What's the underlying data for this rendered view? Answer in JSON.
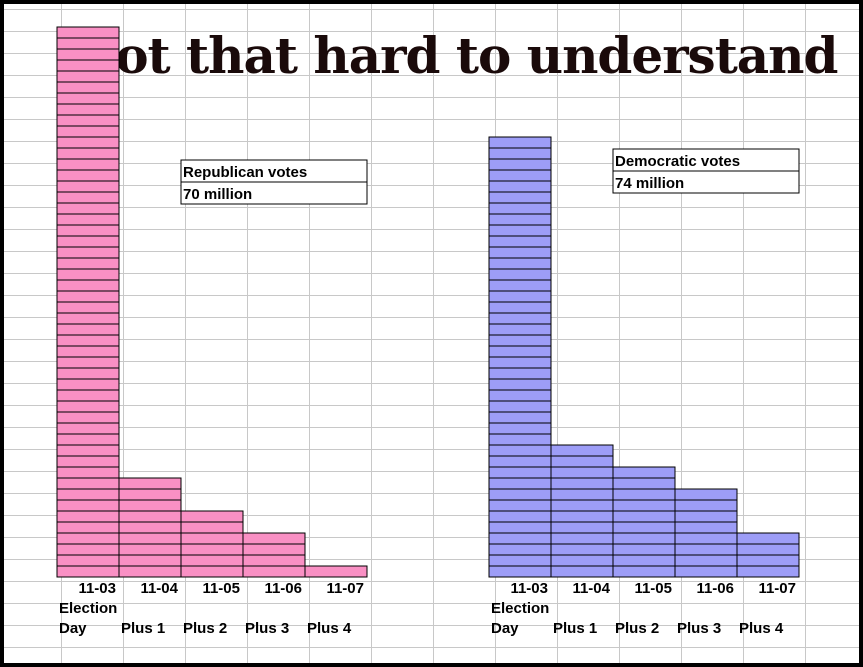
{
  "title": "Not that hard to understand",
  "chart_data": [
    {
      "type": "bar",
      "categories": [
        "11-03",
        "11-04",
        "11-05",
        "11-06",
        "11-07"
      ],
      "category_labels": [
        [
          "Election",
          "Day"
        ],
        [
          "Plus 1"
        ],
        [
          "Plus 2"
        ],
        [
          "Plus 3"
        ],
        [
          "Plus 4"
        ]
      ],
      "values": [
        25,
        4.5,
        3,
        2,
        0.5
      ],
      "legend": [
        "Republican votes",
        "70 million"
      ],
      "color": "#f990c4",
      "ylim": [
        0,
        25
      ],
      "grid": true
    },
    {
      "type": "bar",
      "categories": [
        "11-03",
        "11-04",
        "11-05",
        "11-06",
        "11-07"
      ],
      "category_labels": [
        [
          "Election",
          "Day"
        ],
        [
          "Plus 1"
        ],
        [
          "Plus 2"
        ],
        [
          "Plus 3"
        ],
        [
          "Plus 4"
        ]
      ],
      "values": [
        20,
        6,
        5,
        4,
        2
      ],
      "legend": [
        "Democratic votes",
        "74 million"
      ],
      "color": "#9d9df7",
      "ylim": [
        0,
        25
      ],
      "grid": true
    }
  ]
}
